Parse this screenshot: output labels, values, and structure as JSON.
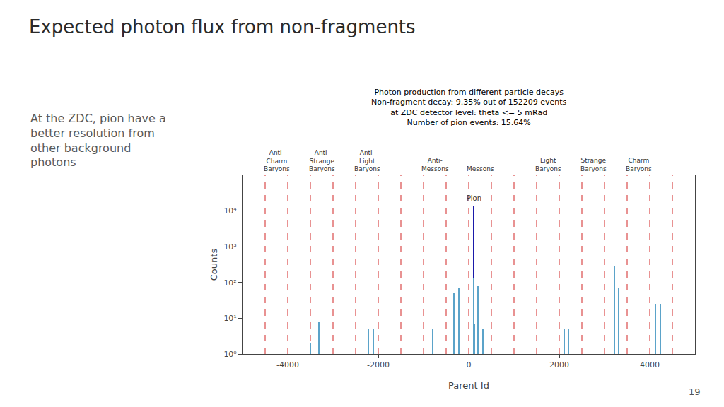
{
  "chart_data": {
    "type": "bar",
    "title": "Expected photon flux from non-fragments",
    "subtitle": "Photon production from different particle decays\nNon-fragment decay: 9.35% out of 152209 events\nat ZDC detector level: theta <= 5 mRad\nNumber of pion events: 15.64%",
    "left_text": "At the ZDC, pion have a\nbetter resolution from\nother background\nphotons",
    "xlabel": "Parent Id",
    "ylabel": "Counts",
    "x": [
      -3500,
      -3312,
      -3300,
      -2212,
      -2100,
      -2000,
      -1000,
      -800,
      -400,
      -321,
      -311,
      -310,
      -221,
      -215,
      -213,
      -211,
      111,
      113,
      115,
      130,
      211,
      213,
      221,
      223,
      311,
      321,
      2112,
      2212,
      2224,
      3122,
      3212,
      3222,
      3312,
      3322,
      4122,
      4232
    ],
    "values": [
      2,
      8,
      1,
      5,
      5,
      1,
      1,
      5,
      1,
      50,
      5,
      5,
      5,
      5,
      3,
      70,
      14000,
      110,
      130,
      7,
      80,
      3,
      3,
      3,
      5,
      5,
      5,
      5,
      1,
      1,
      1,
      300,
      70,
      30,
      25,
      25
    ],
    "colors": [
      "#5ba3c9",
      "#5ba3c9",
      "#5ba3c9",
      "#5ba3c9",
      "#5ba3c9",
      "#5ba3c9",
      "#5ba3c9",
      "#5ba3c9",
      "#5ba3c9",
      "#5ba3c9",
      "#5ba3c9",
      "#5ba3c9",
      "#5ba3c9",
      "#5ba3c9",
      "#5ba3c9",
      "#5ba3c9",
      "#1a1aaa",
      "#5ba3c9",
      "#5ba3c9",
      "#5ba3c9",
      "#5ba3c9",
      "#5ba3c9",
      "#5ba3c9",
      "#5ba3c9",
      "#5ba3c9",
      "#5ba3c9",
      "#5ba3c9",
      "#5ba3c9",
      "#5ba3c9",
      "#5ba3c9",
      "#5ba3c9",
      "#5ba3c9",
      "#5ba3c9",
      "#5ba3c9",
      "#5ba3c9",
      "#5ba3c9"
    ],
    "log": "y",
    "xlim": [
      -5000,
      5000
    ],
    "xticks": [
      -4000,
      -2000,
      0,
      2000,
      4000
    ],
    "ylim": [
      1,
      100000
    ],
    "yticks": [
      {
        "value": 1,
        "label": "10⁰"
      },
      {
        "value": 10,
        "label": "10¹"
      },
      {
        "value": 100,
        "label": "10²"
      },
      {
        "value": 1000,
        "label": "10³"
      },
      {
        "value": 10000,
        "label": "10⁴"
      }
    ],
    "grid": false,
    "vlines": [
      -4500,
      -4000,
      -3500,
      -3000,
      -2500,
      -2000,
      -1500,
      -1000,
      -500,
      0,
      500,
      1000,
      1500,
      2000,
      2500,
      3000,
      3500,
      4000,
      4500
    ],
    "vline_color": "#cc0000",
    "group_labels": [
      {
        "label": "Anti-\nCharm\nBaryons",
        "x": -4250
      },
      {
        "label": "Anti-\nStrange\nBaryons",
        "x": -3250
      },
      {
        "label": "Anti-\nLight\nBaryons",
        "x": -2250
      },
      {
        "label": "Anti-\nMessons",
        "x": -750
      },
      {
        "label": "Messons",
        "x": 250
      },
      {
        "label": "Light\nBaryons",
        "x": 1750
      },
      {
        "label": "Strange\nBaryons",
        "x": 2750
      },
      {
        "label": "Charm\nBaryons",
        "x": 3750
      }
    ],
    "pion_label": {
      "label": "Pion",
      "x": 111
    },
    "page_number": "19"
  }
}
